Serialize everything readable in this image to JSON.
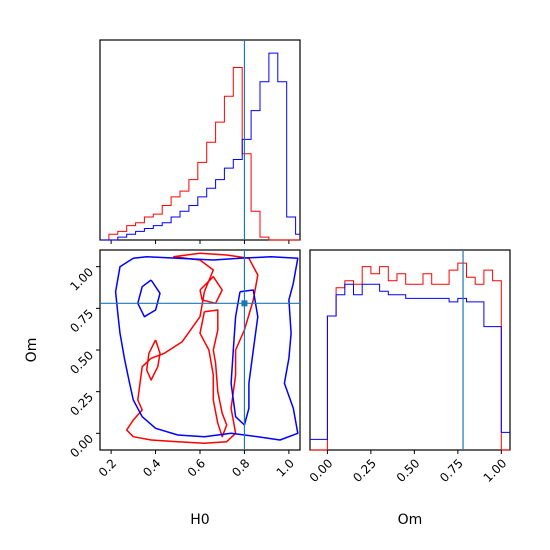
{
  "chart_data": [
    {
      "type": "histogram",
      "panel": "H0 marginal",
      "xlim": [
        0.15,
        1.05
      ],
      "xticks": [
        "0.2",
        "0.4",
        "0.6",
        "0.8",
        "1.0"
      ],
      "yticks_shown": false,
      "truth": 0.8,
      "bin_edges": [
        0.15,
        0.19,
        0.23,
        0.27,
        0.31,
        0.35,
        0.39,
        0.43,
        0.47,
        0.51,
        0.55,
        0.59,
        0.63,
        0.67,
        0.71,
        0.75,
        0.79,
        0.83,
        0.87,
        0.91,
        0.95,
        0.99,
        1.03,
        1.05
      ],
      "series": [
        {
          "color": "#ff0000",
          "counts": [
            0,
            2,
            3,
            5,
            6,
            8,
            9,
            12,
            15,
            17,
            21,
            27,
            34,
            41,
            50,
            60,
            30,
            10,
            1,
            0,
            0,
            0,
            0
          ]
        },
        {
          "color": "#0000ff",
          "counts": [
            0,
            0,
            1,
            2,
            3,
            4,
            5,
            6,
            8,
            10,
            12,
            15,
            18,
            21,
            25,
            28,
            35,
            45,
            55,
            65,
            55,
            8,
            2
          ]
        }
      ]
    },
    {
      "type": "contour",
      "panel": "H0 vs Om joint",
      "xlabel": "H0",
      "ylabel": "Om",
      "xlim": [
        0.15,
        1.05
      ],
      "ylim": [
        -0.1,
        1.1
      ],
      "xticks": [
        "0.2",
        "0.4",
        "0.6",
        "0.8",
        "1.0"
      ],
      "yticks": [
        "0.00",
        "0.25",
        "0.50",
        "0.75",
        "1.00"
      ],
      "truth": {
        "x": 0.8,
        "y": 0.78
      },
      "series": [
        {
          "color": "#ff0000",
          "contours": [
            [
              [
                0.48,
                1.06
              ],
              [
                0.6,
                1.04
              ],
              [
                0.66,
                0.98
              ],
              [
                0.62,
                0.85
              ],
              [
                0.6,
                0.7
              ],
              [
                0.52,
                0.55
              ],
              [
                0.44,
                0.48
              ],
              [
                0.38,
                0.45
              ],
              [
                0.34,
                0.4
              ],
              [
                0.33,
                0.3
              ],
              [
                0.32,
                0.2
              ],
              [
                0.34,
                0.14
              ],
              [
                0.3,
                0.08
              ],
              [
                0.27,
                0.02
              ],
              [
                0.3,
                -0.02
              ],
              [
                0.38,
                -0.04
              ],
              [
                0.5,
                -0.05
              ],
              [
                0.62,
                -0.06
              ],
              [
                0.72,
                -0.05
              ],
              [
                0.76,
                0.0
              ],
              [
                0.74,
                0.15
              ],
              [
                0.76,
                0.35
              ],
              [
                0.76,
                0.5
              ],
              [
                0.8,
                0.62
              ],
              [
                0.84,
                0.8
              ],
              [
                0.86,
                0.95
              ],
              [
                0.82,
                1.05
              ],
              [
                0.72,
                1.07
              ],
              [
                0.6,
                1.08
              ],
              [
                0.48,
                1.06
              ]
            ],
            [
              [
                0.62,
                0.73
              ],
              [
                0.68,
                0.74
              ],
              [
                0.68,
                0.62
              ],
              [
                0.66,
                0.5
              ],
              [
                0.67,
                0.42
              ],
              [
                0.68,
                0.25
              ],
              [
                0.7,
                0.12
              ],
              [
                0.72,
                0.05
              ],
              [
                0.7,
                -0.02
              ],
              [
                0.68,
                0.06
              ],
              [
                0.66,
                0.2
              ],
              [
                0.66,
                0.35
              ],
              [
                0.64,
                0.5
              ],
              [
                0.6,
                0.6
              ],
              [
                0.62,
                0.73
              ]
            ],
            [
              [
                0.4,
                0.56
              ],
              [
                0.42,
                0.48
              ],
              [
                0.41,
                0.4
              ],
              [
                0.38,
                0.32
              ],
              [
                0.36,
                0.38
              ],
              [
                0.37,
                0.48
              ],
              [
                0.4,
                0.56
              ]
            ],
            [
              [
                0.6,
                0.86
              ],
              [
                0.66,
                0.94
              ],
              [
                0.7,
                0.86
              ],
              [
                0.67,
                0.78
              ],
              [
                0.61,
                0.8
              ],
              [
                0.6,
                0.86
              ]
            ]
          ]
        },
        {
          "color": "#0000ff",
          "contours": [
            [
              [
                0.36,
                1.06
              ],
              [
                0.5,
                1.05
              ],
              [
                0.66,
                1.04
              ],
              [
                0.78,
                1.05
              ],
              [
                0.92,
                1.06
              ],
              [
                1.04,
                1.05
              ],
              [
                1.02,
                0.9
              ],
              [
                1.0,
                0.8
              ],
              [
                1.01,
                0.6
              ],
              [
                1.0,
                0.45
              ],
              [
                0.98,
                0.3
              ],
              [
                1.02,
                0.15
              ],
              [
                1.04,
                0.0
              ],
              [
                0.96,
                -0.04
              ],
              [
                0.86,
                -0.02
              ],
              [
                0.74,
                0.0
              ],
              [
                0.62,
                -0.02
              ],
              [
                0.5,
                -0.01
              ],
              [
                0.4,
                0.03
              ],
              [
                0.34,
                0.1
              ],
              [
                0.3,
                0.2
              ],
              [
                0.28,
                0.32
              ],
              [
                0.26,
                0.45
              ],
              [
                0.24,
                0.6
              ],
              [
                0.23,
                0.72
              ],
              [
                0.22,
                0.85
              ],
              [
                0.24,
                1.0
              ],
              [
                0.3,
                1.05
              ],
              [
                0.36,
                1.06
              ]
            ],
            [
              [
                0.78,
                0.85
              ],
              [
                0.84,
                0.86
              ],
              [
                0.86,
                0.7
              ],
              [
                0.84,
                0.5
              ],
              [
                0.82,
                0.3
              ],
              [
                0.82,
                0.15
              ],
              [
                0.8,
                0.05
              ],
              [
                0.76,
                0.1
              ],
              [
                0.74,
                0.3
              ],
              [
                0.75,
                0.5
              ],
              [
                0.76,
                0.7
              ],
              [
                0.78,
                0.85
              ]
            ],
            [
              [
                0.38,
                0.92
              ],
              [
                0.42,
                0.84
              ],
              [
                0.4,
                0.74
              ],
              [
                0.35,
                0.7
              ],
              [
                0.32,
                0.78
              ],
              [
                0.34,
                0.88
              ],
              [
                0.38,
                0.92
              ]
            ]
          ]
        }
      ]
    },
    {
      "type": "histogram",
      "panel": "Om marginal",
      "xlabel": "Om",
      "xlim": [
        -0.1,
        1.05
      ],
      "xticks": [
        "0.00",
        "0.25",
        "0.50",
        "0.75",
        "1.00"
      ],
      "yticks_shown": false,
      "truth": 0.78,
      "bin_edges": [
        -0.1,
        -0.04,
        0.0,
        0.05,
        0.1,
        0.15,
        0.2,
        0.25,
        0.3,
        0.35,
        0.4,
        0.45,
        0.5,
        0.55,
        0.6,
        0.65,
        0.7,
        0.75,
        0.8,
        0.85,
        0.9,
        0.95,
        1.0,
        1.05
      ],
      "series": [
        {
          "color": "#ff0000",
          "counts": [
            0,
            0,
            38,
            46,
            48,
            47,
            52,
            50,
            52,
            48,
            50,
            47,
            47,
            50,
            47,
            47,
            51,
            53,
            49,
            47,
            51,
            48,
            0
          ]
        },
        {
          "color": "#0000ff",
          "counts": [
            3,
            3,
            38,
            44,
            47,
            44,
            47,
            47,
            45,
            44,
            44,
            43,
            43,
            43,
            43,
            43,
            42,
            43,
            42,
            42,
            35,
            35,
            5
          ]
        }
      ]
    }
  ]
}
